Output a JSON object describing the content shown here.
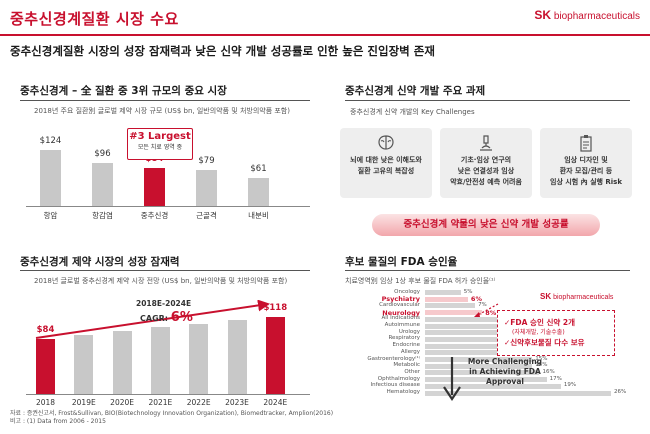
{
  "header": {
    "title": "중추신경계질환 시장 수요",
    "logo_sk": "SK",
    "logo_text": "biopharmaceuticals",
    "subtitle": "중추신경계질환 시장의 성장 잠재력과 낮은 신약 개발 성공률로 인한 높은 진입장벽 존재"
  },
  "colors": {
    "accent": "#c8102e",
    "bar_gray": "#c8c8c8",
    "box_gray": "#eeeeee"
  },
  "chart_data": [
    {
      "type": "bar",
      "title": "중추신경계 – 全 질환 중 3위 규모의 중요 시장",
      "subtitle": "2018년 주요 질환別 글로벌 제약 시장 규모 (US$ bn, 일반의약품 및 처방의약품 포함)",
      "categories": [
        "항암",
        "항감염",
        "중추신경",
        "근골격",
        "내분비"
      ],
      "values": [
        124,
        96,
        84,
        79,
        61
      ],
      "value_labels": [
        "$124",
        "$96",
        "$84",
        "$79",
        "$61"
      ],
      "highlight": "중추신경",
      "annotation_big": "#3 Largest",
      "annotation_small": "모든 치료 영역 중"
    },
    {
      "type": "bar",
      "title": "중추신경계 제약 시장의 성장 잠재력",
      "subtitle": "2018년 글로벌 중추신경계 제약 시장 전망 (US$ bn, 일반의약품 및 처방의약품 포함)",
      "categories": [
        "2018",
        "2019E",
        "2020E",
        "2021E",
        "2022E",
        "2023E",
        "2024E"
      ],
      "values": [
        84,
        90,
        96,
        102,
        108,
        113,
        118
      ],
      "value_labels": [
        "$84",
        "",
        "",
        "",
        "",
        "",
        "$118"
      ],
      "annotation_range": "2018E-2024E",
      "annotation_cagr_label": "CAGR:",
      "annotation_cagr_value": "6%"
    },
    {
      "type": "bar",
      "title": "후보 물질의 FDA 승인율",
      "subtitle": "치료영역別 임상 1상 후보 물질 FDA 허가 승인율⁽¹⁾",
      "categories": [
        "Oncology",
        "Psychiatry",
        "Cardiovascular",
        "Neurology",
        "All Indications",
        "Autoimmune",
        "Urology",
        "Respiratory",
        "Endocrine",
        "Allergy",
        "Gastroenterology⁽¹⁾",
        "Metabolic",
        "Other",
        "Ophthalmology",
        "Infectious disease",
        "Hematology"
      ],
      "values": [
        5,
        6,
        7,
        8,
        10,
        11,
        11,
        13,
        13,
        15,
        15,
        15,
        16,
        17,
        19,
        26
      ],
      "value_labels": [
        "5%",
        "6%",
        "7%",
        "8%",
        "10%",
        "11%",
        "11%",
        "13%",
        "13%",
        "15%",
        "15%",
        "15%",
        "16%",
        "17%",
        "19%",
        "26%"
      ],
      "highlight": [
        "Psychiatry",
        "Neurology"
      ],
      "annotation": "More Challenging in Achieving FDA Approval"
    }
  ],
  "section_tasks": {
    "title": "중추신경계 신약 개발 주요 과제",
    "subtitle": "중추신경계 신약 개발의 Key Challenges",
    "boxes": [
      {
        "icon": "brain-icon",
        "line1": "뇌에 대한 낮은 이해도와",
        "line2": "질환 고유의 복잡성"
      },
      {
        "icon": "microscope-icon",
        "line1": "기초·임상 연구의",
        "line2": "낮은 연결성과 임상",
        "line3": "약효/안전성 예측 어려움"
      },
      {
        "icon": "clipboard-icon",
        "line1": "임상 디자인 및",
        "line2": "환자 모집/관리 등",
        "line3": "임상 시험 內 실행 Risk"
      }
    ],
    "banner": "중추신경계 약물의 낮은 신약 개발 성공률"
  },
  "fda_note": {
    "logo_sk": "SK",
    "logo_text": "biopharmaceuticals",
    "line1": "✓FDA 승인 신약 2개",
    "line1_sub": "(자체개발, 기술수출)",
    "line2": "✓신약후보물질 다수 보유"
  },
  "footer": {
    "line1": "자료 : 증권신고서, Frost&Sullivan, BIO(Biotechnology Innovation Organization), Biomedtracker, Amplion(2016)",
    "line2": "비고 : (1) Data from 2006 - 2015"
  }
}
